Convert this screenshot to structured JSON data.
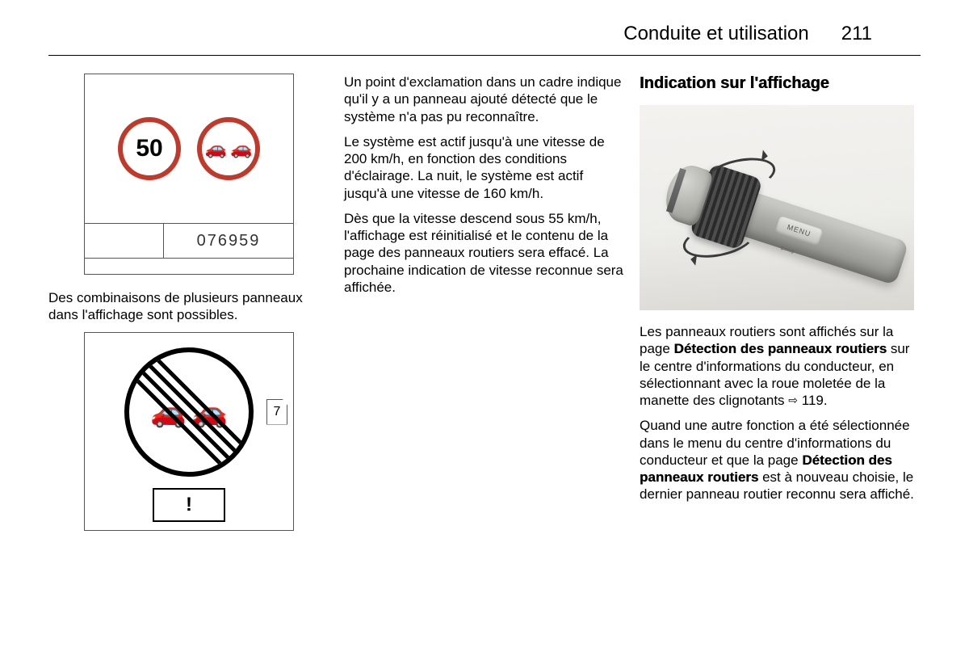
{
  "header": {
    "title": "Conduite et utilisation",
    "page": "211"
  },
  "col1": {
    "fig1_code": "076959",
    "speed_value": "50",
    "text1": "Des combinaisons de plusieurs panneaux dans l'affichage sont possibles.",
    "fig2_note": "7",
    "fig2_excl": "!"
  },
  "col2": {
    "p1": "Un point d'exclamation dans un cadre indique qu'il y a un panneau ajouté détecté que le système n'a pas pu reconnaître.",
    "p2": "Le système est actif jusqu'à une vitesse de 200 km/h, en fonction des conditions d'éclairage. La nuit, le système est actif jusqu'à une vitesse de 160 km/h.",
    "p3": "Dès que la vitesse descend sous 55 km/h, l'affichage est réinitialisé et le contenu de la page des panneaux routiers sera effacé. La prochaine indication de vitesse reconnue sera affichée."
  },
  "col3": {
    "heading": "Indication sur l'affichage",
    "menu_label": "MENU",
    "p1_a": "Les panneaux routiers sont affichés sur la page ",
    "p1_bold": "Détection des panneaux routiers",
    "p1_b": " sur le centre d'informations du conducteur, en sélectionnant avec la roue moletée de la manette des clignotants ",
    "p1_ref": "119.",
    "p2_a": "Quand une autre fonction a été sélectionnée dans le menu du centre d'informations du conducteur et que la page ",
    "p2_bold": "Détection des panneaux routiers",
    "p2_b": " est à nouveau choisie, le dernier panneau routier reconnu sera affiché."
  }
}
